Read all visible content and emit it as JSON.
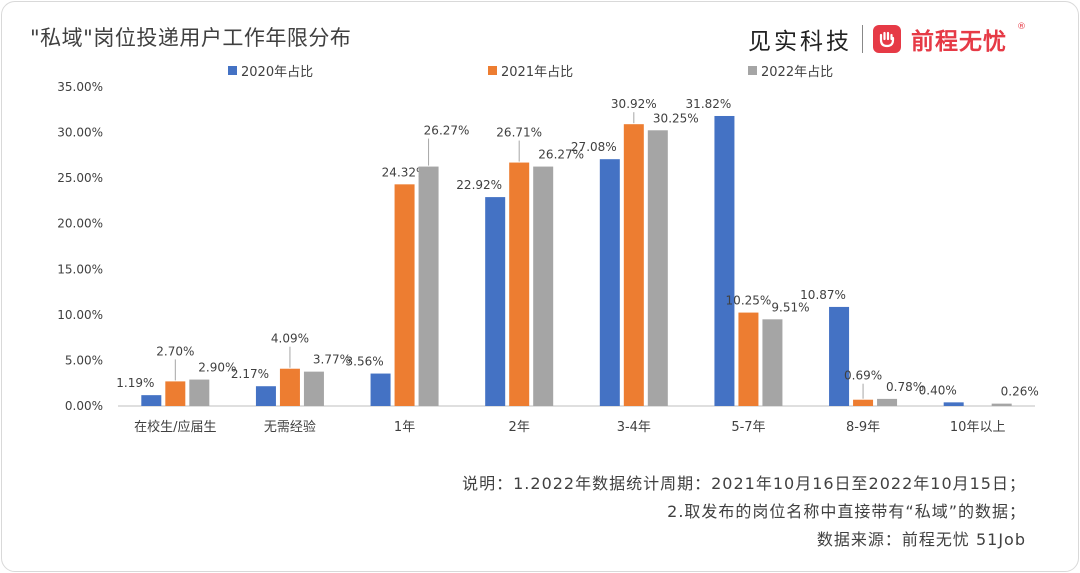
{
  "title": "\"私域\"岗位投递用户工作年限分布",
  "brand": {
    "left": "见实科技",
    "right": "前程无忧",
    "registered": "®"
  },
  "legend": [
    {
      "label": "2020年占比",
      "color": "#4472C4"
    },
    {
      "label": "2021年占比",
      "color": "#ED7D31"
    },
    {
      "label": "2022年占比",
      "color": "#A5A5A5"
    }
  ],
  "chart_data": {
    "type": "bar",
    "categories": [
      "在校生/应届生",
      "无需经验",
      "1年",
      "2年",
      "3-4年",
      "5-7年",
      "8-9年",
      "10年以上"
    ],
    "series": [
      {
        "name": "2020年占比",
        "color": "#4472C4",
        "values": [
          1.19,
          2.17,
          3.56,
          22.92,
          27.08,
          31.82,
          10.87,
          0.4
        ]
      },
      {
        "name": "2021年占比",
        "color": "#ED7D31",
        "values": [
          2.7,
          4.09,
          24.32,
          26.71,
          30.92,
          10.25,
          0.69,
          null
        ]
      },
      {
        "name": "2022年占比",
        "color": "#A5A5A5",
        "values": [
          2.9,
          3.77,
          26.27,
          26.27,
          30.25,
          9.51,
          0.78,
          0.26
        ]
      }
    ],
    "labels": [
      [
        "1.19%",
        "2.70%",
        "2.90%"
      ],
      [
        "2.17%",
        "4.09%",
        "3.77%"
      ],
      [
        "3.56%",
        "24.32%",
        "26.27%"
      ],
      [
        "22.92%",
        "26.71%",
        "26.27%"
      ],
      [
        "27.08%",
        "30.92%",
        "30.25%"
      ],
      [
        "31.82%",
        "10.25%",
        "9.51%"
      ],
      [
        "10.87%",
        "0.69%",
        "0.78%"
      ],
      [
        "0.40%",
        "",
        "0.26%"
      ]
    ],
    "yticks": [
      "0.00%",
      "5.00%",
      "10.00%",
      "15.00%",
      "20.00%",
      "25.00%",
      "30.00%",
      "35.00%"
    ],
    "ylim": [
      0,
      35
    ],
    "legend_position": "top",
    "grid": false
  },
  "notes": [
    "说明：1.2022年数据统计周期：2021年10月16日至2022年10月15日；",
    "2.取发布的岗位名称中直接带有“私域”的数据；",
    "数据来源：前程无忧 51Job"
  ]
}
